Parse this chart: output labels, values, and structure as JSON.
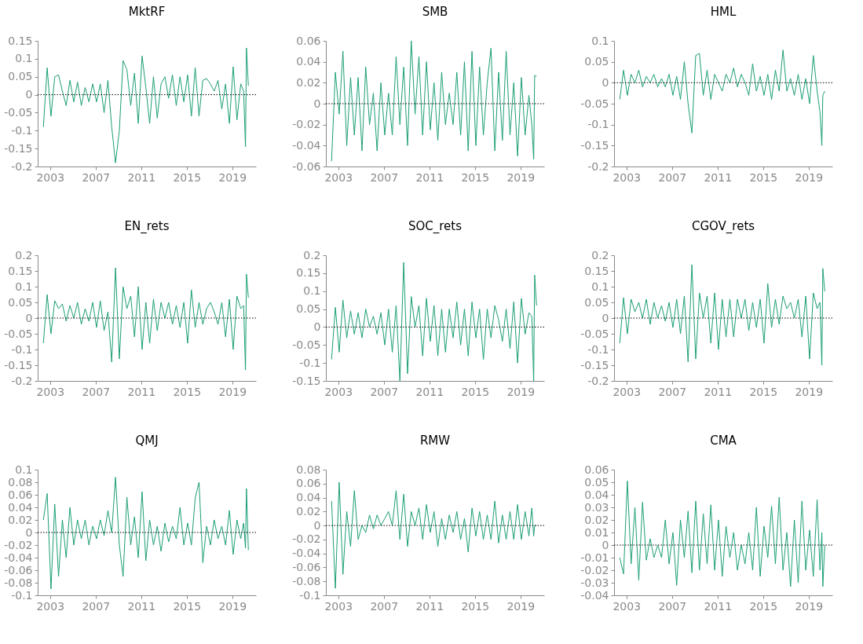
{
  "chart_data": [
    {
      "type": "line",
      "title": "MktRF",
      "xlim": [
        "2001-12",
        "2021-02"
      ],
      "xticks": [
        "2003",
        "2007",
        "2011",
        "2015",
        "2019"
      ],
      "ylim": [
        -0.2,
        0.15
      ],
      "yticks": [
        -0.2,
        -0.15,
        -0.1,
        -0.05,
        0,
        0.05,
        0.1,
        0.15
      ],
      "grid": false,
      "ref_lines": [
        {
          "axis": "y",
          "value": 0,
          "color": "#000000",
          "line_style": "dotted"
        }
      ],
      "x": [
        "2002-06",
        "2002-10",
        "2003-02",
        "2003-06",
        "2003-10",
        "2004-02",
        "2004-06",
        "2004-10",
        "2005-02",
        "2005-06",
        "2005-10",
        "2006-02",
        "2006-06",
        "2006-10",
        "2007-02",
        "2007-06",
        "2007-10",
        "2008-02",
        "2008-06",
        "2008-10",
        "2009-02",
        "2009-06",
        "2009-10",
        "2010-02",
        "2010-06",
        "2010-10",
        "2011-02",
        "2011-06",
        "2011-10",
        "2012-02",
        "2012-06",
        "2012-10",
        "2013-02",
        "2013-06",
        "2013-10",
        "2014-02",
        "2014-06",
        "2014-10",
        "2015-02",
        "2015-06",
        "2015-10",
        "2016-02",
        "2016-06",
        "2016-10",
        "2017-02",
        "2017-06",
        "2017-10",
        "2018-02",
        "2018-06",
        "2018-10",
        "2019-02",
        "2019-06",
        "2019-10",
        "2020-01",
        "2020-03",
        "2020-04",
        "2020-06"
      ],
      "series": [
        {
          "color": "#1b9e77",
          "values": [
            -0.09,
            0.075,
            -0.06,
            0.05,
            0.055,
            0.01,
            -0.03,
            0.04,
            -0.02,
            0.035,
            -0.03,
            0.02,
            -0.02,
            0.03,
            -0.02,
            0.03,
            -0.05,
            0.04,
            -0.09,
            -0.19,
            -0.1,
            0.095,
            0.07,
            -0.03,
            0.06,
            -0.08,
            0.108,
            0.02,
            -0.08,
            0.05,
            -0.065,
            0.03,
            0.05,
            -0.01,
            0.055,
            -0.03,
            0.05,
            -0.02,
            0.055,
            -0.06,
            0.075,
            -0.06,
            0.04,
            0.045,
            0.03,
            0.01,
            0.04,
            -0.04,
            0.03,
            -0.08,
            0.078,
            -0.07,
            0.03,
            0.01,
            -0.145,
            0.13,
            0.025
          ]
        }
      ]
    },
    {
      "type": "line",
      "title": "SMB",
      "xlim": [
        "2001-12",
        "2021-02"
      ],
      "xticks": [
        "2003",
        "2007",
        "2011",
        "2015",
        "2019"
      ],
      "ylim": [
        -0.06,
        0.06
      ],
      "yticks": [
        -0.06,
        -0.04,
        -0.02,
        0,
        0.02,
        0.04,
        0.06
      ],
      "grid": false,
      "ref_lines": [
        {
          "axis": "y",
          "value": 0,
          "color": "#000000",
          "line_style": "dotted"
        }
      ],
      "x": [
        "2002-06",
        "2002-10",
        "2003-02",
        "2003-06",
        "2003-10",
        "2004-02",
        "2004-06",
        "2004-10",
        "2005-02",
        "2005-06",
        "2005-10",
        "2006-02",
        "2006-06",
        "2006-10",
        "2007-02",
        "2007-06",
        "2007-10",
        "2008-02",
        "2008-06",
        "2008-10",
        "2009-02",
        "2009-06",
        "2009-10",
        "2010-02",
        "2010-06",
        "2010-10",
        "2011-02",
        "2011-06",
        "2011-10",
        "2012-02",
        "2012-06",
        "2012-10",
        "2013-02",
        "2013-06",
        "2013-10",
        "2014-02",
        "2014-06",
        "2014-10",
        "2015-02",
        "2015-06",
        "2015-10",
        "2016-02",
        "2016-06",
        "2016-10",
        "2017-02",
        "2017-06",
        "2017-10",
        "2018-02",
        "2018-06",
        "2018-10",
        "2019-02",
        "2019-06",
        "2019-10",
        "2020-01",
        "2020-03",
        "2020-04",
        "2020-06"
      ],
      "series": [
        {
          "color": "#1b9e77",
          "values": [
            -0.055,
            0.03,
            -0.01,
            0.05,
            -0.04,
            0.025,
            -0.03,
            0.025,
            -0.045,
            0.035,
            -0.02,
            0.01,
            -0.045,
            0.02,
            -0.03,
            0.01,
            -0.03,
            0.045,
            -0.02,
            0.035,
            -0.04,
            0.06,
            -0.01,
            0.045,
            -0.03,
            0.04,
            -0.025,
            0.02,
            -0.035,
            0.03,
            -0.02,
            0.01,
            -0.02,
            0.03,
            -0.03,
            0.04,
            -0.045,
            0.05,
            -0.04,
            0.035,
            -0.03,
            0.02,
            0.053,
            -0.045,
            0.03,
            -0.035,
            0.05,
            -0.03,
            0.02,
            -0.05,
            0.025,
            -0.03,
            0.008,
            -0.02,
            -0.053,
            0.027,
            0.026
          ]
        }
      ]
    },
    {
      "type": "line",
      "title": "HML",
      "xlim": [
        "2001-12",
        "2021-02"
      ],
      "xticks": [
        "2003",
        "2007",
        "2011",
        "2015",
        "2019"
      ],
      "ylim": [
        -0.2,
        0.1
      ],
      "yticks": [
        -0.2,
        -0.15,
        -0.1,
        -0.05,
        0,
        0.05,
        0.1
      ],
      "grid": false,
      "ref_lines": [
        {
          "axis": "y",
          "value": 0,
          "color": "#000000",
          "line_style": "dotted"
        }
      ],
      "x": [
        "2002-06",
        "2002-10",
        "2003-02",
        "2003-06",
        "2003-10",
        "2004-02",
        "2004-06",
        "2004-10",
        "2005-02",
        "2005-06",
        "2005-10",
        "2006-02",
        "2006-06",
        "2006-10",
        "2007-02",
        "2007-06",
        "2007-10",
        "2008-02",
        "2008-06",
        "2008-10",
        "2009-02",
        "2009-06",
        "2009-10",
        "2010-02",
        "2010-06",
        "2010-10",
        "2011-02",
        "2011-06",
        "2011-10",
        "2012-02",
        "2012-06",
        "2012-10",
        "2013-02",
        "2013-06",
        "2013-10",
        "2014-02",
        "2014-06",
        "2014-10",
        "2015-02",
        "2015-06",
        "2015-10",
        "2016-02",
        "2016-06",
        "2016-10",
        "2017-02",
        "2017-06",
        "2017-10",
        "2018-02",
        "2018-06",
        "2018-10",
        "2019-02",
        "2019-06",
        "2019-10",
        "2020-01",
        "2020-03",
        "2020-04",
        "2020-06"
      ],
      "series": [
        {
          "color": "#1b9e77",
          "values": [
            -0.04,
            0.03,
            -0.03,
            0.02,
            0.0,
            0.03,
            -0.01,
            0.015,
            0.0,
            0.02,
            -0.01,
            0.01,
            -0.01,
            0.02,
            -0.03,
            0.015,
            -0.04,
            0.05,
            -0.05,
            -0.12,
            0.065,
            0.07,
            -0.03,
            0.03,
            -0.04,
            0.02,
            0.0,
            -0.02,
            0.02,
            0.0,
            0.035,
            -0.01,
            0.02,
            0.0,
            -0.03,
            0.045,
            -0.02,
            0.015,
            -0.03,
            0.02,
            -0.04,
            0.03,
            -0.02,
            0.078,
            -0.02,
            0.01,
            -0.03,
            0.02,
            -0.04,
            0.01,
            -0.05,
            0.065,
            -0.02,
            -0.07,
            -0.15,
            -0.03,
            -0.02
          ]
        }
      ]
    },
    {
      "type": "line",
      "title": "EN_rets",
      "xlim": [
        "2001-12",
        "2021-02"
      ],
      "xticks": [
        "2003",
        "2007",
        "2011",
        "2015",
        "2019"
      ],
      "ylim": [
        -0.2,
        0.2
      ],
      "yticks": [
        -0.2,
        -0.15,
        -0.1,
        -0.05,
        0,
        0.05,
        0.1,
        0.15,
        0.2
      ],
      "grid": false,
      "ref_lines": [
        {
          "axis": "y",
          "value": 0,
          "color": "#000000",
          "line_style": "dotted"
        }
      ],
      "x": [
        "2002-06",
        "2002-10",
        "2003-02",
        "2003-06",
        "2003-10",
        "2004-02",
        "2004-06",
        "2004-10",
        "2005-02",
        "2005-06",
        "2005-10",
        "2006-02",
        "2006-06",
        "2006-10",
        "2007-02",
        "2007-06",
        "2007-10",
        "2008-02",
        "2008-06",
        "2008-10",
        "2009-02",
        "2009-06",
        "2009-10",
        "2010-02",
        "2010-06",
        "2010-10",
        "2011-02",
        "2011-06",
        "2011-10",
        "2012-02",
        "2012-06",
        "2012-10",
        "2013-02",
        "2013-06",
        "2013-10",
        "2014-02",
        "2014-06",
        "2014-10",
        "2015-02",
        "2015-06",
        "2015-10",
        "2016-02",
        "2016-06",
        "2016-10",
        "2017-02",
        "2017-06",
        "2017-10",
        "2018-02",
        "2018-06",
        "2018-10",
        "2019-02",
        "2019-06",
        "2019-10",
        "2020-01",
        "2020-03",
        "2020-04",
        "2020-06"
      ],
      "series": [
        {
          "color": "#1b9e77",
          "values": [
            -0.08,
            0.075,
            -0.05,
            0.055,
            0.03,
            0.045,
            -0.01,
            0.04,
            0.0,
            0.05,
            -0.02,
            0.03,
            -0.01,
            0.05,
            -0.03,
            0.055,
            -0.04,
            0.02,
            -0.14,
            0.16,
            -0.13,
            0.1,
            0.03,
            0.07,
            -0.06,
            0.1,
            -0.1,
            0.05,
            -0.08,
            0.06,
            -0.04,
            0.05,
            0.0,
            0.05,
            -0.02,
            0.04,
            -0.03,
            0.05,
            -0.08,
            0.09,
            -0.03,
            0.05,
            -0.02,
            0.03,
            0.05,
            0.02,
            -0.02,
            0.05,
            -0.06,
            0.06,
            -0.1,
            0.07,
            0.03,
            0.04,
            -0.165,
            0.14,
            0.065
          ]
        }
      ]
    },
    {
      "type": "line",
      "title": "SOC_rets",
      "xlim": [
        "2001-12",
        "2021-02"
      ],
      "xticks": [
        "2003",
        "2007",
        "2011",
        "2015",
        "2019"
      ],
      "ylim": [
        -0.15,
        0.2
      ],
      "yticks": [
        -0.15,
        -0.1,
        -0.05,
        0,
        0.05,
        0.1,
        0.15,
        0.2
      ],
      "grid": false,
      "ref_lines": [
        {
          "axis": "y",
          "value": 0,
          "color": "#000000",
          "line_style": "dotted"
        }
      ],
      "x": [
        "2002-06",
        "2002-10",
        "2003-02",
        "2003-06",
        "2003-10",
        "2004-02",
        "2004-06",
        "2004-10",
        "2005-02",
        "2005-06",
        "2005-10",
        "2006-02",
        "2006-06",
        "2006-10",
        "2007-02",
        "2007-06",
        "2007-10",
        "2008-02",
        "2008-06",
        "2008-10",
        "2009-02",
        "2009-06",
        "2009-10",
        "2010-02",
        "2010-06",
        "2010-10",
        "2011-02",
        "2011-06",
        "2011-10",
        "2012-02",
        "2012-06",
        "2012-10",
        "2013-02",
        "2013-06",
        "2013-10",
        "2014-02",
        "2014-06",
        "2014-10",
        "2015-02",
        "2015-06",
        "2015-10",
        "2016-02",
        "2016-06",
        "2016-10",
        "2017-02",
        "2017-06",
        "2017-10",
        "2018-02",
        "2018-06",
        "2018-10",
        "2019-02",
        "2019-06",
        "2019-10",
        "2020-01",
        "2020-03",
        "2020-04",
        "2020-06"
      ],
      "series": [
        {
          "color": "#1b9e77",
          "values": [
            -0.09,
            0.055,
            -0.07,
            0.075,
            -0.03,
            0.045,
            -0.02,
            0.04,
            -0.03,
            0.05,
            0.0,
            0.03,
            -0.02,
            0.04,
            -0.05,
            0.05,
            -0.07,
            0.06,
            -0.15,
            0.18,
            -0.13,
            0.085,
            0.0,
            0.06,
            -0.08,
            0.08,
            -0.04,
            0.06,
            -0.08,
            0.05,
            -0.07,
            0.05,
            -0.03,
            0.07,
            -0.05,
            0.05,
            -0.08,
            0.07,
            -0.03,
            0.05,
            -0.09,
            0.05,
            -0.03,
            0.06,
            0.02,
            -0.04,
            0.05,
            -0.06,
            0.07,
            -0.1,
            0.08,
            -0.02,
            0.04,
            0.03,
            -0.15,
            0.145,
            0.06
          ]
        }
      ]
    },
    {
      "type": "line",
      "title": "CGOV_rets",
      "xlim": [
        "2001-12",
        "2021-02"
      ],
      "xticks": [
        "2003",
        "2007",
        "2011",
        "2015",
        "2019"
      ],
      "ylim": [
        -0.2,
        0.2
      ],
      "yticks": [
        -0.2,
        -0.15,
        -0.1,
        -0.05,
        0,
        0.05,
        0.1,
        0.15,
        0.2
      ],
      "grid": false,
      "ref_lines": [
        {
          "axis": "y",
          "value": 0,
          "color": "#000000",
          "line_style": "dotted"
        }
      ],
      "x": [
        "2002-06",
        "2002-10",
        "2003-02",
        "2003-06",
        "2003-10",
        "2004-02",
        "2004-06",
        "2004-10",
        "2005-02",
        "2005-06",
        "2005-10",
        "2006-02",
        "2006-06",
        "2006-10",
        "2007-02",
        "2007-06",
        "2007-10",
        "2008-02",
        "2008-06",
        "2008-10",
        "2009-02",
        "2009-06",
        "2009-10",
        "2010-02",
        "2010-06",
        "2010-10",
        "2011-02",
        "2011-06",
        "2011-10",
        "2012-02",
        "2012-06",
        "2012-10",
        "2013-02",
        "2013-06",
        "2013-10",
        "2014-02",
        "2014-06",
        "2014-10",
        "2015-02",
        "2015-06",
        "2015-10",
        "2016-02",
        "2016-06",
        "2016-10",
        "2017-02",
        "2017-06",
        "2017-10",
        "2018-02",
        "2018-06",
        "2018-10",
        "2019-02",
        "2019-06",
        "2019-10",
        "2020-01",
        "2020-03",
        "2020-04",
        "2020-06"
      ],
      "series": [
        {
          "color": "#1b9e77",
          "values": [
            -0.08,
            0.065,
            -0.05,
            0.06,
            0.02,
            0.05,
            0.0,
            0.06,
            -0.02,
            0.05,
            0.0,
            0.04,
            -0.01,
            0.05,
            -0.03,
            0.06,
            -0.05,
            0.07,
            -0.14,
            0.17,
            -0.13,
            0.08,
            0.0,
            0.07,
            -0.08,
            0.08,
            -0.1,
            0.06,
            -0.06,
            0.06,
            -0.06,
            0.06,
            0.0,
            0.06,
            -0.04,
            0.05,
            -0.03,
            0.06,
            -0.08,
            0.11,
            -0.03,
            0.06,
            -0.02,
            0.07,
            0.03,
            0.05,
            0.0,
            0.06,
            -0.06,
            0.07,
            -0.13,
            0.08,
            0.03,
            0.05,
            -0.15,
            0.158,
            0.085
          ]
        }
      ]
    },
    {
      "type": "line",
      "title": "QMJ",
      "xlim": [
        "2001-12",
        "2021-02"
      ],
      "xticks": [
        "2003",
        "2007",
        "2011",
        "2015",
        "2019"
      ],
      "ylim": [
        -0.1,
        0.1
      ],
      "yticks": [
        -0.1,
        -0.08,
        -0.06,
        -0.04,
        -0.02,
        0,
        0.02,
        0.04,
        0.06,
        0.08,
        0.1
      ],
      "grid": false,
      "ref_lines": [
        {
          "axis": "y",
          "value": 0,
          "color": "#000000",
          "line_style": "dotted"
        }
      ],
      "x": [
        "2002-06",
        "2002-10",
        "2003-02",
        "2003-06",
        "2003-10",
        "2004-02",
        "2004-06",
        "2004-10",
        "2005-02",
        "2005-06",
        "2005-10",
        "2006-02",
        "2006-06",
        "2006-10",
        "2007-02",
        "2007-06",
        "2007-10",
        "2008-02",
        "2008-06",
        "2008-10",
        "2009-02",
        "2009-06",
        "2009-10",
        "2010-02",
        "2010-06",
        "2010-10",
        "2011-02",
        "2011-06",
        "2011-10",
        "2012-02",
        "2012-06",
        "2012-10",
        "2013-02",
        "2013-06",
        "2013-10",
        "2014-02",
        "2014-06",
        "2014-10",
        "2015-02",
        "2015-06",
        "2015-10",
        "2016-02",
        "2016-06",
        "2016-10",
        "2017-02",
        "2017-06",
        "2017-10",
        "2018-02",
        "2018-06",
        "2018-10",
        "2019-02",
        "2019-06",
        "2019-10",
        "2020-01",
        "2020-03",
        "2020-04",
        "2020-06"
      ],
      "series": [
        {
          "color": "#1b9e77",
          "values": [
            0.02,
            0.062,
            -0.09,
            0.045,
            -0.07,
            0.02,
            -0.04,
            0.04,
            -0.02,
            0.02,
            -0.01,
            0.02,
            -0.02,
            0.01,
            -0.01,
            0.02,
            -0.005,
            0.035,
            0.0,
            0.088,
            -0.02,
            -0.07,
            0.056,
            -0.02,
            0.025,
            -0.04,
            0.065,
            -0.045,
            0.02,
            -0.02,
            0.01,
            -0.03,
            0.015,
            -0.015,
            0.01,
            -0.01,
            0.04,
            -0.02,
            0.015,
            -0.02,
            0.055,
            0.08,
            -0.048,
            0.01,
            -0.02,
            0.02,
            -0.01,
            0.01,
            -0.02,
            0.035,
            -0.035,
            0.02,
            -0.01,
            0.015,
            -0.025,
            0.07,
            -0.028
          ]
        }
      ]
    },
    {
      "type": "line",
      "title": "RMW",
      "xlim": [
        "2001-12",
        "2021-02"
      ],
      "xticks": [
        "2003",
        "2007",
        "2011",
        "2015",
        "2019"
      ],
      "ylim": [
        -0.1,
        0.08
      ],
      "yticks": [
        -0.1,
        -0.08,
        -0.06,
        -0.04,
        -0.02,
        0,
        0.02,
        0.04,
        0.06,
        0.08
      ],
      "grid": false,
      "ref_lines": [
        {
          "axis": "y",
          "value": 0,
          "color": "#000000",
          "line_style": "dotted"
        }
      ],
      "x": [
        "2002-06",
        "2002-10",
        "2003-02",
        "2003-06",
        "2003-10",
        "2004-02",
        "2004-06",
        "2004-10",
        "2005-02",
        "2005-06",
        "2005-10",
        "2006-02",
        "2006-06",
        "2006-10",
        "2007-02",
        "2007-06",
        "2007-10",
        "2008-02",
        "2008-06",
        "2008-10",
        "2009-02",
        "2009-06",
        "2009-10",
        "2010-02",
        "2010-06",
        "2010-10",
        "2011-02",
        "2011-06",
        "2011-10",
        "2012-02",
        "2012-06",
        "2012-10",
        "2013-02",
        "2013-06",
        "2013-10",
        "2014-02",
        "2014-06",
        "2014-10",
        "2015-02",
        "2015-06",
        "2015-10",
        "2016-02",
        "2016-06",
        "2016-10",
        "2017-02",
        "2017-06",
        "2017-10",
        "2018-02",
        "2018-06",
        "2018-10",
        "2019-02",
        "2019-06",
        "2019-10",
        "2020-01",
        "2020-03",
        "2020-04",
        "2020-06"
      ],
      "series": [
        {
          "color": "#1b9e77",
          "values": [
            0.035,
            -0.09,
            0.062,
            -0.07,
            0.02,
            -0.03,
            0.05,
            -0.02,
            0.0,
            -0.01,
            0.015,
            -0.005,
            0.015,
            0.0,
            0.01,
            0.02,
            0.0,
            0.05,
            -0.02,
            0.045,
            -0.03,
            0.02,
            0.0,
            0.025,
            -0.02,
            0.03,
            -0.01,
            0.02,
            -0.03,
            0.01,
            -0.02,
            0.015,
            -0.01,
            0.02,
            -0.02,
            0.01,
            -0.038,
            0.025,
            -0.015,
            0.02,
            -0.02,
            0.015,
            -0.02,
            0.035,
            -0.025,
            0.015,
            -0.02,
            0.02,
            -0.02,
            0.03,
            -0.02,
            0.02,
            -0.015,
            0.025,
            -0.015,
            0.0,
            0.0
          ]
        }
      ]
    },
    {
      "type": "line",
      "title": "CMA",
      "xlim": [
        "2001-12",
        "2021-02"
      ],
      "xticks": [
        "2003",
        "2007",
        "2011",
        "2015",
        "2019"
      ],
      "ylim": [
        -0.04,
        0.06
      ],
      "yticks": [
        -0.04,
        -0.03,
        -0.02,
        -0.01,
        0,
        0.01,
        0.02,
        0.03,
        0.04,
        0.05,
        0.06
      ],
      "grid": false,
      "ref_lines": [
        {
          "axis": "y",
          "value": 0,
          "color": "#000000",
          "line_style": "dotted"
        }
      ],
      "x": [
        "2002-06",
        "2002-10",
        "2003-02",
        "2003-06",
        "2003-10",
        "2004-02",
        "2004-06",
        "2004-10",
        "2005-02",
        "2005-06",
        "2005-10",
        "2006-02",
        "2006-06",
        "2006-10",
        "2007-02",
        "2007-06",
        "2007-10",
        "2008-02",
        "2008-06",
        "2008-10",
        "2009-02",
        "2009-06",
        "2009-10",
        "2010-02",
        "2010-06",
        "2010-10",
        "2011-02",
        "2011-06",
        "2011-10",
        "2012-02",
        "2012-06",
        "2012-10",
        "2013-02",
        "2013-06",
        "2013-10",
        "2014-02",
        "2014-06",
        "2014-10",
        "2015-02",
        "2015-06",
        "2015-10",
        "2016-02",
        "2016-06",
        "2016-10",
        "2017-02",
        "2017-06",
        "2017-10",
        "2018-02",
        "2018-06",
        "2018-10",
        "2019-02",
        "2019-06",
        "2019-10",
        "2020-01",
        "2020-03",
        "2020-04",
        "2020-06"
      ],
      "series": [
        {
          "color": "#1b9e77",
          "values": [
            -0.01,
            -0.023,
            0.051,
            -0.015,
            0.03,
            -0.028,
            0.034,
            -0.012,
            0.005,
            -0.01,
            0.0,
            -0.01,
            0.02,
            -0.015,
            0.01,
            -0.032,
            0.02,
            -0.01,
            0.027,
            -0.022,
            0.035,
            -0.02,
            0.025,
            -0.015,
            0.032,
            -0.02,
            0.02,
            -0.025,
            0.015,
            -0.01,
            0.01,
            -0.02,
            0.0,
            -0.015,
            0.01,
            -0.02,
            0.03,
            -0.025,
            0.015,
            -0.01,
            0.031,
            -0.015,
            0.038,
            -0.02,
            0.01,
            -0.033,
            0.02,
            -0.03,
            0.035,
            -0.02,
            0.012,
            -0.025,
            0.036,
            -0.02,
            0.01,
            -0.033,
            0.0
          ]
        }
      ]
    }
  ]
}
